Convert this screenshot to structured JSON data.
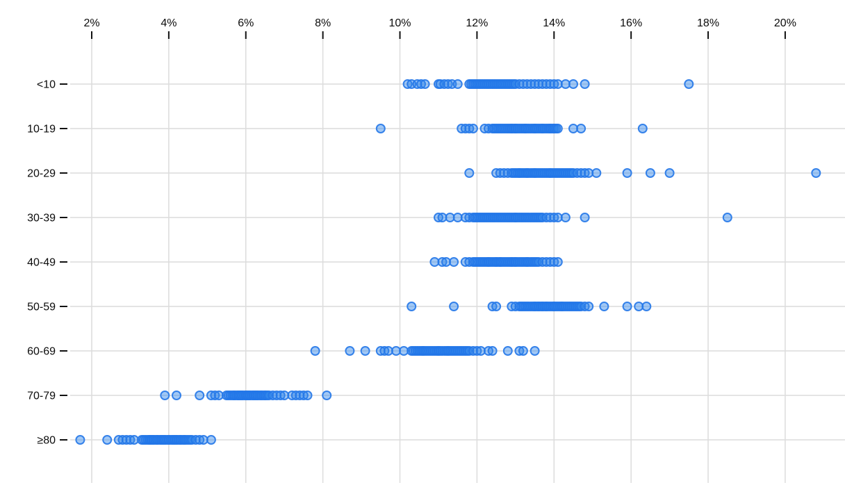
{
  "figure": {
    "title": "",
    "description": "Strip plot of percentage distribution by age group"
  },
  "chart_data": {
    "type": "scatter",
    "variant": "strip-plot-horizontal",
    "title": "",
    "xlabel": "",
    "ylabel": "",
    "x_axis": {
      "range_pct": [
        1.4,
        21.5
      ],
      "ticks": [
        {
          "value": 2,
          "label": "2%"
        },
        {
          "value": 4,
          "label": "4%"
        },
        {
          "value": 6,
          "label": "6%"
        },
        {
          "value": 8,
          "label": "8%"
        },
        {
          "value": 10,
          "label": "10%"
        },
        {
          "value": 12,
          "label": "12%"
        },
        {
          "value": 14,
          "label": "14%"
        },
        {
          "value": 16,
          "label": "16%"
        },
        {
          "value": 18,
          "label": "18%"
        },
        {
          "value": 20,
          "label": "20%"
        }
      ],
      "grid": true,
      "tick_position": "top"
    },
    "categories": [
      "<10",
      "10-19",
      "20-29",
      "30-39",
      "40-49",
      "50-59",
      "60-69",
      "70-79",
      "≥80"
    ],
    "series": [
      {
        "category": "<10",
        "values": [
          10.2,
          10.3,
          10.45,
          10.55,
          10.65,
          11.0,
          11.05,
          11.15,
          11.25,
          11.35,
          11.5,
          11.8,
          11.85,
          11.9,
          11.95,
          12.0,
          12.05,
          12.1,
          12.15,
          12.2,
          12.25,
          12.3,
          12.35,
          12.4,
          12.45,
          12.5,
          12.55,
          12.6,
          12.65,
          12.7,
          12.75,
          12.8,
          12.85,
          12.9,
          12.95,
          13.0,
          13.1,
          13.2,
          13.3,
          13.4,
          13.5,
          13.6,
          13.7,
          13.8,
          13.9,
          14.0,
          14.1,
          14.3,
          14.5,
          14.8,
          17.5
        ]
      },
      {
        "category": "10-19",
        "values": [
          9.5,
          11.6,
          11.7,
          11.8,
          11.9,
          12.2,
          12.3,
          12.4,
          12.45,
          12.5,
          12.55,
          12.6,
          12.65,
          12.7,
          12.75,
          12.8,
          12.85,
          12.9,
          12.9,
          12.95,
          13.0,
          13.0,
          13.05,
          13.1,
          13.15,
          13.2,
          13.25,
          13.25,
          13.3,
          13.35,
          13.4,
          13.45,
          13.5,
          13.5,
          13.55,
          13.6,
          13.65,
          13.7,
          13.7,
          13.75,
          13.8,
          13.85,
          13.9,
          13.9,
          13.95,
          14.0,
          14.0,
          14.05,
          14.1,
          14.5,
          14.7,
          16.3
        ]
      },
      {
        "category": "20-29",
        "values": [
          11.8,
          12.5,
          12.6,
          12.7,
          12.8,
          12.9,
          12.95,
          13.0,
          13.05,
          13.1,
          13.1,
          13.15,
          13.2,
          13.25,
          13.3,
          13.3,
          13.35,
          13.4,
          13.45,
          13.5,
          13.5,
          13.55,
          13.6,
          13.65,
          13.7,
          13.75,
          13.8,
          13.85,
          13.9,
          13.9,
          13.95,
          14.0,
          14.05,
          14.1,
          14.15,
          14.2,
          14.25,
          14.3,
          14.35,
          14.4,
          14.45,
          14.5,
          14.6,
          14.7,
          14.8,
          14.9,
          15.1,
          15.9,
          16.5,
          17.0,
          20.8
        ]
      },
      {
        "category": "30-39",
        "values": [
          11.0,
          11.1,
          11.3,
          11.5,
          11.7,
          11.8,
          11.9,
          11.95,
          12.0,
          12.05,
          12.1,
          12.15,
          12.2,
          12.25,
          12.3,
          12.35,
          12.4,
          12.45,
          12.5,
          12.55,
          12.6,
          12.65,
          12.7,
          12.75,
          12.8,
          12.85,
          12.9,
          12.95,
          13.0,
          13.0,
          13.05,
          13.1,
          13.15,
          13.2,
          13.25,
          13.3,
          13.35,
          13.4,
          13.45,
          13.5,
          13.55,
          13.6,
          13.65,
          13.7,
          13.8,
          13.9,
          14.0,
          14.1,
          14.3,
          14.8,
          18.5
        ]
      },
      {
        "category": "40-49",
        "values": [
          10.9,
          11.1,
          11.2,
          11.4,
          11.7,
          11.8,
          11.9,
          11.95,
          12.0,
          12.05,
          12.1,
          12.15,
          12.2,
          12.25,
          12.3,
          12.3,
          12.35,
          12.4,
          12.45,
          12.5,
          12.5,
          12.55,
          12.6,
          12.6,
          12.65,
          12.7,
          12.75,
          12.8,
          12.85,
          12.9,
          12.9,
          12.95,
          13.0,
          13.0,
          13.05,
          13.1,
          13.15,
          13.2,
          13.25,
          13.3,
          13.3,
          13.35,
          13.4,
          13.45,
          13.5,
          13.55,
          13.6,
          13.7,
          13.8,
          13.9,
          14.0,
          14.1
        ]
      },
      {
        "category": "50-59",
        "values": [
          10.3,
          11.4,
          12.4,
          12.5,
          12.9,
          13.0,
          13.1,
          13.15,
          13.2,
          13.25,
          13.3,
          13.35,
          13.4,
          13.45,
          13.5,
          13.5,
          13.55,
          13.6,
          13.6,
          13.65,
          13.7,
          13.7,
          13.75,
          13.8,
          13.8,
          13.85,
          13.9,
          13.95,
          14.0,
          14.0,
          14.05,
          14.1,
          14.15,
          14.2,
          14.2,
          14.25,
          14.3,
          14.35,
          14.4,
          14.45,
          14.5,
          14.55,
          14.6,
          14.65,
          14.7,
          14.8,
          14.9,
          15.3,
          15.9,
          16.2,
          16.4
        ]
      },
      {
        "category": "60-69",
        "values": [
          7.8,
          8.7,
          9.1,
          9.5,
          9.6,
          9.7,
          9.9,
          10.1,
          10.3,
          10.35,
          10.4,
          10.45,
          10.5,
          10.55,
          10.6,
          10.6,
          10.65,
          10.7,
          10.75,
          10.8,
          10.85,
          10.9,
          10.95,
          11.0,
          11.0,
          11.05,
          11.1,
          11.15,
          11.2,
          11.25,
          11.25,
          11.3,
          11.35,
          11.4,
          11.45,
          11.5,
          11.55,
          11.6,
          11.65,
          11.7,
          11.75,
          11.8,
          11.9,
          12.0,
          12.1,
          12.3,
          12.4,
          12.8,
          13.1,
          13.2,
          13.5
        ]
      },
      {
        "category": "70-79",
        "values": [
          3.9,
          4.2,
          4.8,
          5.1,
          5.2,
          5.3,
          5.5,
          5.55,
          5.6,
          5.65,
          5.7,
          5.7,
          5.75,
          5.8,
          5.8,
          5.85,
          5.85,
          5.9,
          5.9,
          5.95,
          6.0,
          6.0,
          6.05,
          6.05,
          6.1,
          6.1,
          6.15,
          6.2,
          6.2,
          6.25,
          6.25,
          6.3,
          6.3,
          6.35,
          6.4,
          6.4,
          6.45,
          6.5,
          6.5,
          6.55,
          6.6,
          6.7,
          6.8,
          6.9,
          7.0,
          7.2,
          7.3,
          7.4,
          7.5,
          7.6,
          8.1
        ]
      },
      {
        "category": "≥80",
        "values": [
          1.7,
          2.4,
          2.7,
          2.8,
          2.9,
          3.0,
          3.1,
          3.3,
          3.35,
          3.4,
          3.45,
          3.5,
          3.5,
          3.55,
          3.55,
          3.6,
          3.6,
          3.65,
          3.7,
          3.7,
          3.75,
          3.8,
          3.8,
          3.85,
          3.85,
          3.9,
          3.9,
          3.95,
          4.0,
          4.0,
          4.05,
          4.1,
          4.1,
          4.15,
          4.15,
          4.2,
          4.2,
          4.25,
          4.3,
          4.3,
          4.35,
          4.4,
          4.4,
          4.45,
          4.5,
          4.55,
          4.6,
          4.7,
          4.8,
          4.9,
          5.1
        ]
      }
    ],
    "style": {
      "dot_fill": "#2e85ec",
      "dot_fill_opacity": 0.45,
      "dot_stroke": "#2377e8",
      "dot_stroke_opacity": 0.9,
      "gridline_color": "#dcdcdc",
      "tick_color": "#111111",
      "text_color": "#0b0b0b",
      "background": "#ffffff"
    },
    "legend": null
  }
}
